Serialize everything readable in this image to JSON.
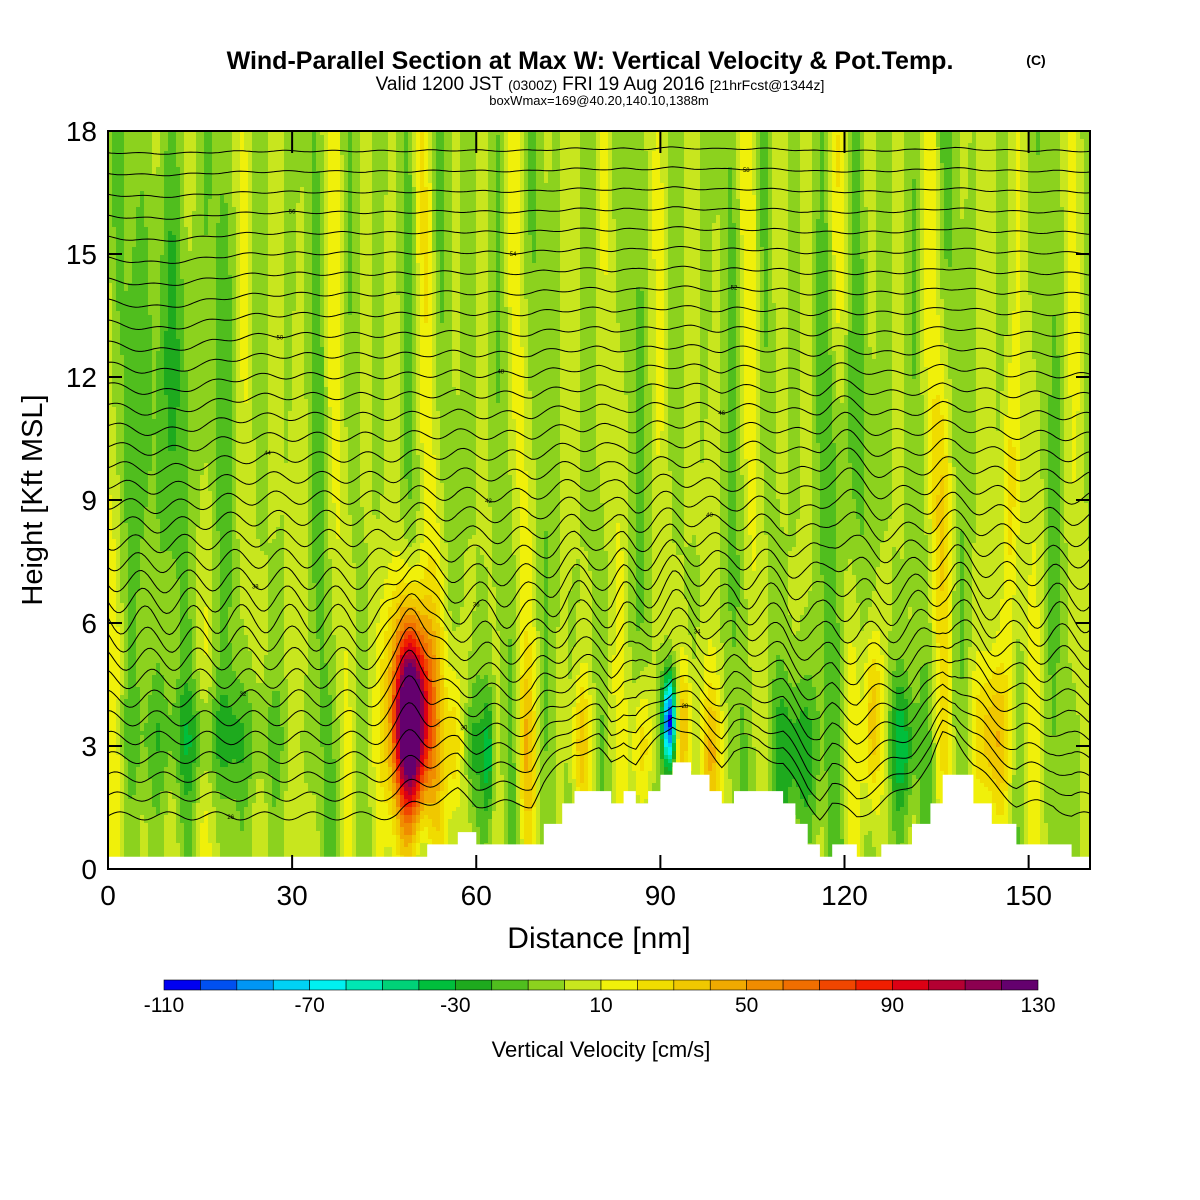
{
  "header": {
    "title": "Wind-Parallel Section at Max W: Vertical Velocity & Pot.Temp.",
    "copyright": "(C)",
    "valid_prefix": "Valid 1200 JST",
    "valid_zulu": "(0300Z)",
    "valid_date": "FRI 19 Aug 2016",
    "valid_fcst": "[21hrFcst@1344z]",
    "box": "boxWmax=169@40.20,140.10,1388m"
  },
  "chart_data": {
    "type": "heatmap",
    "xlabel": "Distance [nm]",
    "ylabel": "Height [Kft MSL]",
    "xlim": [
      0,
      160
    ],
    "ylim": [
      0,
      18
    ],
    "xticks": [
      0,
      30,
      60,
      90,
      120,
      150
    ],
    "yticks": [
      0,
      3,
      6,
      9,
      12,
      15,
      18
    ],
    "colorbar": {
      "label": "Vertical Velocity [cm/s]",
      "min": -110,
      "max": 130,
      "step": 10,
      "tick_labels": [
        -110,
        -70,
        -30,
        10,
        50,
        90,
        130
      ],
      "colors": [
        "#0000f0",
        "#0050f0",
        "#0096f5",
        "#00d2f5",
        "#00f0f0",
        "#00e6b4",
        "#00d278",
        "#00be3c",
        "#1eaa1e",
        "#50be1e",
        "#8cd21e",
        "#c8e61e",
        "#f0f00a",
        "#f0dc00",
        "#f0c800",
        "#f0aa00",
        "#f08c00",
        "#f06e00",
        "#f04600",
        "#f01e00",
        "#dc0014",
        "#b40032",
        "#8c0050",
        "#64006e"
      ]
    },
    "field": {
      "background_w": 0,
      "blobs": [
        {
          "x": 49.5,
          "z": 3.6,
          "sx": 2.0,
          "sz": 1.6,
          "w": 130
        },
        {
          "x": 49.5,
          "z": 3.8,
          "sx": 3.2,
          "sz": 2.2,
          "w": 45
        },
        {
          "x": 91.5,
          "z": 3.6,
          "sx": 0.8,
          "sz": 0.8,
          "w": -110
        },
        {
          "x": 93.8,
          "z": 3.4,
          "sx": 1.0,
          "sz": 1.2,
          "w": 40
        },
        {
          "x": 56.5,
          "z": 3.0,
          "sx": 0.9,
          "sz": 1.5,
          "w": 30
        },
        {
          "x": 59.5,
          "z": 3.0,
          "sx": 0.9,
          "sz": 1.3,
          "w": -25
        },
        {
          "x": 62.0,
          "z": 2.8,
          "sx": 0.7,
          "sz": 1.1,
          "w": -35
        },
        {
          "x": 68.0,
          "z": 3.0,
          "sx": 1.0,
          "sz": 1.4,
          "w": 25
        },
        {
          "x": 77.0,
          "z": 3.0,
          "sx": 1.0,
          "sz": 1.2,
          "w": 35
        },
        {
          "x": 87.0,
          "z": 3.0,
          "sx": 1.2,
          "sz": 1.2,
          "w": 30
        },
        {
          "x": 98.5,
          "z": 2.8,
          "sx": 1.2,
          "sz": 1.2,
          "w": 35
        },
        {
          "x": 112.0,
          "z": 2.8,
          "sx": 3.0,
          "sz": 1.4,
          "w": -30
        },
        {
          "x": 124.5,
          "z": 3.6,
          "sx": 1.0,
          "sz": 1.6,
          "w": 45
        },
        {
          "x": 129.5,
          "z": 3.0,
          "sx": 1.6,
          "sz": 1.2,
          "w": -35
        },
        {
          "x": 144.0,
          "z": 3.2,
          "sx": 2.2,
          "sz": 1.4,
          "w": 40
        },
        {
          "x": 16.0,
          "z": 3.2,
          "sx": 9.0,
          "sz": 1.0,
          "w": -20
        },
        {
          "x": 10.0,
          "z": 12.0,
          "sx": 5.0,
          "sz": 4.0,
          "w": -18
        },
        {
          "x": 120.0,
          "z": 10.0,
          "sx": 2.0,
          "sz": 3.0,
          "w": -20
        },
        {
          "x": 147.0,
          "z": 9.0,
          "sx": 1.0,
          "sz": 2.5,
          "w": 25
        },
        {
          "x": 136.0,
          "z": 9.0,
          "sx": 1.2,
          "sz": 2.5,
          "w": 22
        }
      ],
      "stripe_amplitude": 14,
      "stripe_period_nm": 7.5
    },
    "terrain_kft": [
      [
        0,
        0.3
      ],
      [
        47,
        0.3
      ],
      [
        52,
        0.6
      ],
      [
        57,
        0.9
      ],
      [
        60,
        0.6
      ],
      [
        69,
        0.6
      ],
      [
        71,
        1.1
      ],
      [
        74,
        1.6
      ],
      [
        76,
        1.9
      ],
      [
        80,
        1.9
      ],
      [
        82,
        1.6
      ],
      [
        84,
        1.9
      ],
      [
        86,
        1.6
      ],
      [
        88,
        1.9
      ],
      [
        90,
        2.3
      ],
      [
        92,
        2.6
      ],
      [
        95,
        2.3
      ],
      [
        98,
        1.9
      ],
      [
        100,
        1.6
      ],
      [
        102,
        1.9
      ],
      [
        106,
        1.9
      ],
      [
        110,
        1.6
      ],
      [
        112,
        1.1
      ],
      [
        114,
        0.6
      ],
      [
        116,
        0.3
      ],
      [
        118,
        0.6
      ],
      [
        122,
        0.3
      ],
      [
        126,
        0.6
      ],
      [
        131,
        1.1
      ],
      [
        134,
        1.6
      ],
      [
        136,
        2.3
      ],
      [
        138,
        2.3
      ],
      [
        141,
        1.6
      ],
      [
        144,
        1.1
      ],
      [
        148,
        0.6
      ],
      [
        150,
        0.6
      ],
      [
        154,
        0.6
      ],
      [
        157,
        0.3
      ],
      [
        160,
        0.3
      ]
    ],
    "theta_contours": {
      "base_kft": 1.0,
      "spacing_kft": 0.5,
      "count": 34,
      "label_start": 26,
      "label_step": 1
    }
  }
}
